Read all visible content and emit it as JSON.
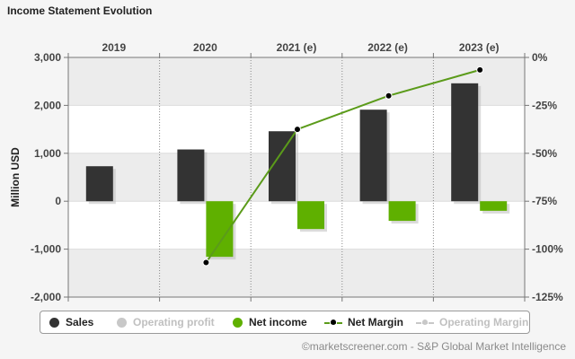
{
  "title": "Income Statement Evolution",
  "credit": "©marketscreener.com - S&P Global Market Intelligence",
  "colors": {
    "sales": "#333333",
    "operating_profit": "#c8c8c8",
    "net_income": "#5fb000",
    "net_margin_line": "#5b9b1a",
    "net_margin_point": "#000000",
    "operating_margin": "#c8c8c8",
    "legend_active_text": "#222222",
    "legend_inactive_text": "#c0c0c0"
  },
  "legend": [
    {
      "label": "Sales",
      "marker": "dot",
      "color": "#333333",
      "active": true
    },
    {
      "label": "Operating profit",
      "marker": "dot",
      "color": "#c8c8c8",
      "active": false
    },
    {
      "label": "Net income",
      "marker": "dot",
      "color": "#5fb000",
      "active": true
    },
    {
      "label": "Net Margin",
      "marker": "line",
      "color": "#5b9b1a",
      "point_color": "#000000",
      "active": true
    },
    {
      "label": "Operating Margin",
      "marker": "line",
      "color": "#c8c8c8",
      "point_color": "#c8c8c8",
      "active": false
    }
  ],
  "chart_data": {
    "type": "bar",
    "categories": [
      "2019",
      "2020",
      "2021 (e)",
      "2022 (e)",
      "2023 (e)"
    ],
    "series": [
      {
        "name": "Sales",
        "type": "bar",
        "values": [
          730,
          1080,
          1460,
          1910,
          2460
        ]
      },
      {
        "name": "Net income",
        "type": "bar",
        "values": [
          null,
          -1160,
          -580,
          -410,
          -200
        ]
      },
      {
        "name": "Net Margin",
        "type": "line",
        "axis": "right",
        "values": [
          null,
          -107,
          -37.5,
          -20,
          -6.5
        ]
      }
    ],
    "ylabel": "Million USD",
    "ylim": [
      -2000,
      3000
    ],
    "yticks": [
      -2000,
      -1000,
      0,
      1000,
      2000,
      3000
    ],
    "ytick_labels": [
      "-2,000",
      "-1,000",
      "0",
      "1,000",
      "2,000",
      "3,000"
    ],
    "y2lim": [
      -125,
      0
    ],
    "y2ticks": [
      -125,
      -100,
      -75,
      -50,
      -25,
      0
    ],
    "y2tick_labels": [
      "-125%",
      "-100%",
      "-75%",
      "-50%",
      "-25%",
      "0%"
    ],
    "x_axis_position": "top",
    "grid": true,
    "legend_position": "bottom"
  }
}
